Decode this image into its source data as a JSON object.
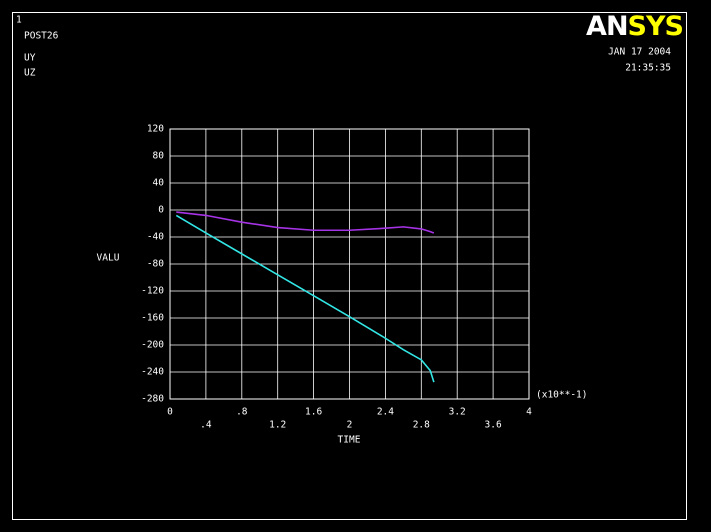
{
  "chart_data": {
    "type": "line",
    "window_number": "1",
    "title": "POST26",
    "logo": [
      "AN",
      "SYS"
    ],
    "logo_colors": [
      "#ffffff",
      "#ffff00"
    ],
    "date": "JAN 17 2004",
    "time": "21:35:35",
    "x_label": "TIME",
    "y_label": "VALU",
    "x_scale_label": "(x10**-1)",
    "grid": true,
    "xlim": [
      0,
      4
    ],
    "xticks": [
      0,
      {
        "value": 0.4,
        "label": ".4"
      },
      {
        "value": 0.8,
        "label": ".8"
      },
      1.2,
      1.6,
      2,
      2.4,
      2.8,
      3.2,
      3.6,
      4
    ],
    "ylim": [
      -280,
      120
    ],
    "yticks": [
      -280,
      -240,
      -200,
      -160,
      -120,
      -80,
      -40,
      0,
      40,
      80,
      120
    ],
    "x": [
      0.07,
      0.4,
      0.8,
      1.2,
      1.6,
      2.0,
      2.4,
      2.6,
      2.8,
      2.9,
      2.94
    ],
    "series": [
      {
        "name": "UY",
        "color": "#33e6e6",
        "values": [
          -8,
          -34,
          -65,
          -96,
          -127,
          -158,
          -190,
          -207,
          -222,
          -238,
          -255
        ]
      },
      {
        "name": "UZ",
        "color": "#a633e6",
        "values": [
          -3,
          -8,
          -18,
          -26,
          -30,
          -30,
          -27,
          -25,
          -28,
          -32,
          -34
        ]
      }
    ]
  }
}
